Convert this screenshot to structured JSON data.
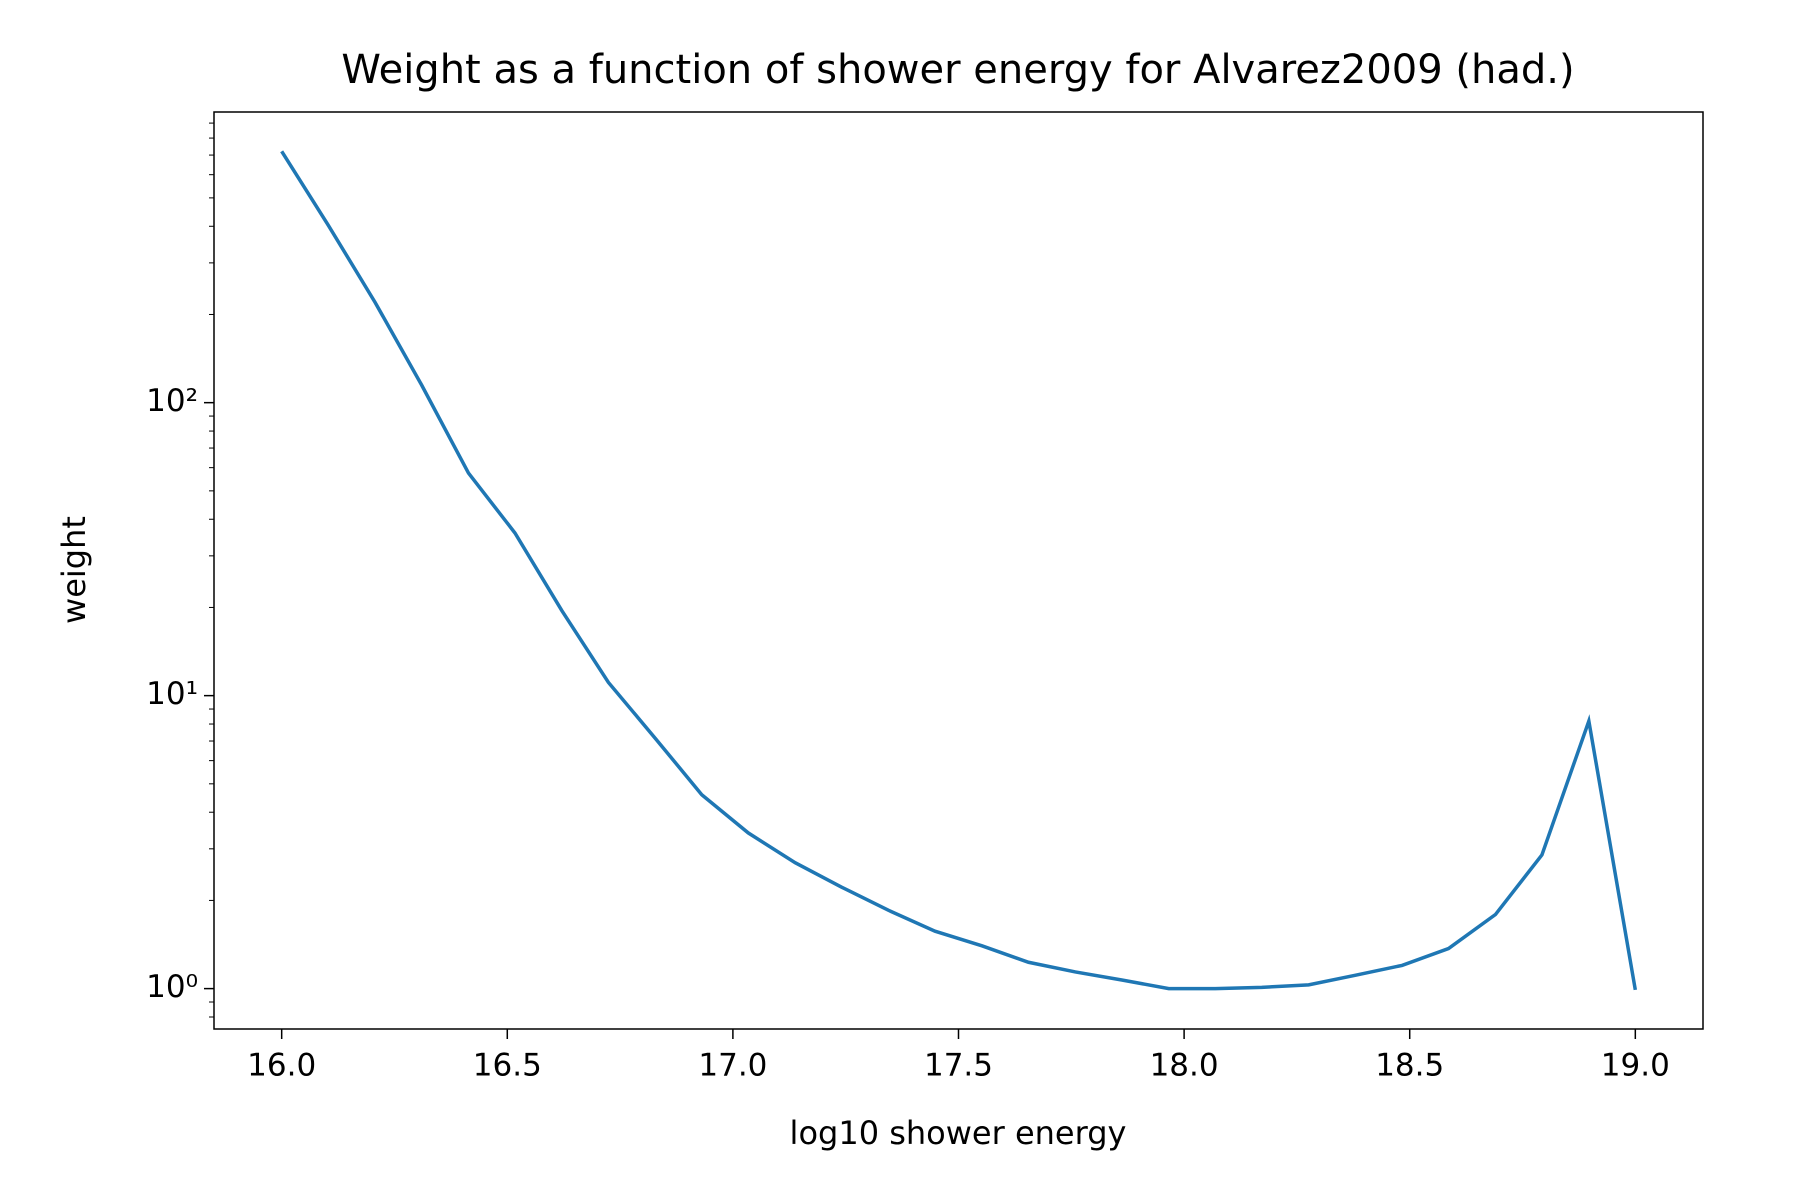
{
  "chart_data": {
    "type": "line",
    "title": "Weight as a function of shower energy for Alvarez2009 (had.)",
    "x_label": "log10 shower energy",
    "y_label": "weight",
    "x": [
      16.0,
      16.103,
      16.207,
      16.31,
      16.414,
      16.517,
      16.621,
      16.724,
      16.828,
      16.931,
      17.034,
      17.138,
      17.241,
      17.345,
      17.448,
      17.552,
      17.655,
      17.759,
      17.862,
      17.966,
      18.069,
      18.172,
      18.276,
      18.379,
      18.483,
      18.586,
      18.69,
      18.793,
      18.897,
      19.0
    ],
    "series": [
      {
        "name": "weight",
        "color": "#1f77b4",
        "values": [
          721,
          404,
          220,
          115,
          57.5,
          35.9,
          19.5,
          11.1,
          7.15,
          4.59,
          3.4,
          2.69,
          2.22,
          1.85,
          1.57,
          1.4,
          1.23,
          1.14,
          1.07,
          1.0,
          1.0,
          1.01,
          1.03,
          1.11,
          1.2,
          1.37,
          1.79,
          2.86,
          8.19,
          0.99
        ]
      }
    ],
    "xlim": [
      15.85,
      19.15
    ],
    "ylim": [
      0.728,
      982
    ],
    "xticks": [
      {
        "value": 16,
        "label": "16.0"
      },
      16.5,
      {
        "value": 17,
        "label": "17.0"
      },
      17.5,
      {
        "value": 18,
        "label": "18.0"
      },
      18.5,
      {
        "value": 19,
        "label": "19.0"
      }
    ],
    "yticks": [
      {
        "value": 1,
        "label": "10⁰"
      },
      {
        "value": 10,
        "label": "10¹"
      },
      {
        "value": 100,
        "label": "10²"
      }
    ],
    "yminorticks": [
      0.8,
      0.9,
      2,
      3,
      4,
      5,
      6,
      7,
      8,
      9,
      20,
      30,
      40,
      50,
      60,
      70,
      80,
      90,
      200,
      300,
      400,
      500,
      600,
      700,
      800,
      900
    ],
    "ylog": true,
    "grid": false
  }
}
